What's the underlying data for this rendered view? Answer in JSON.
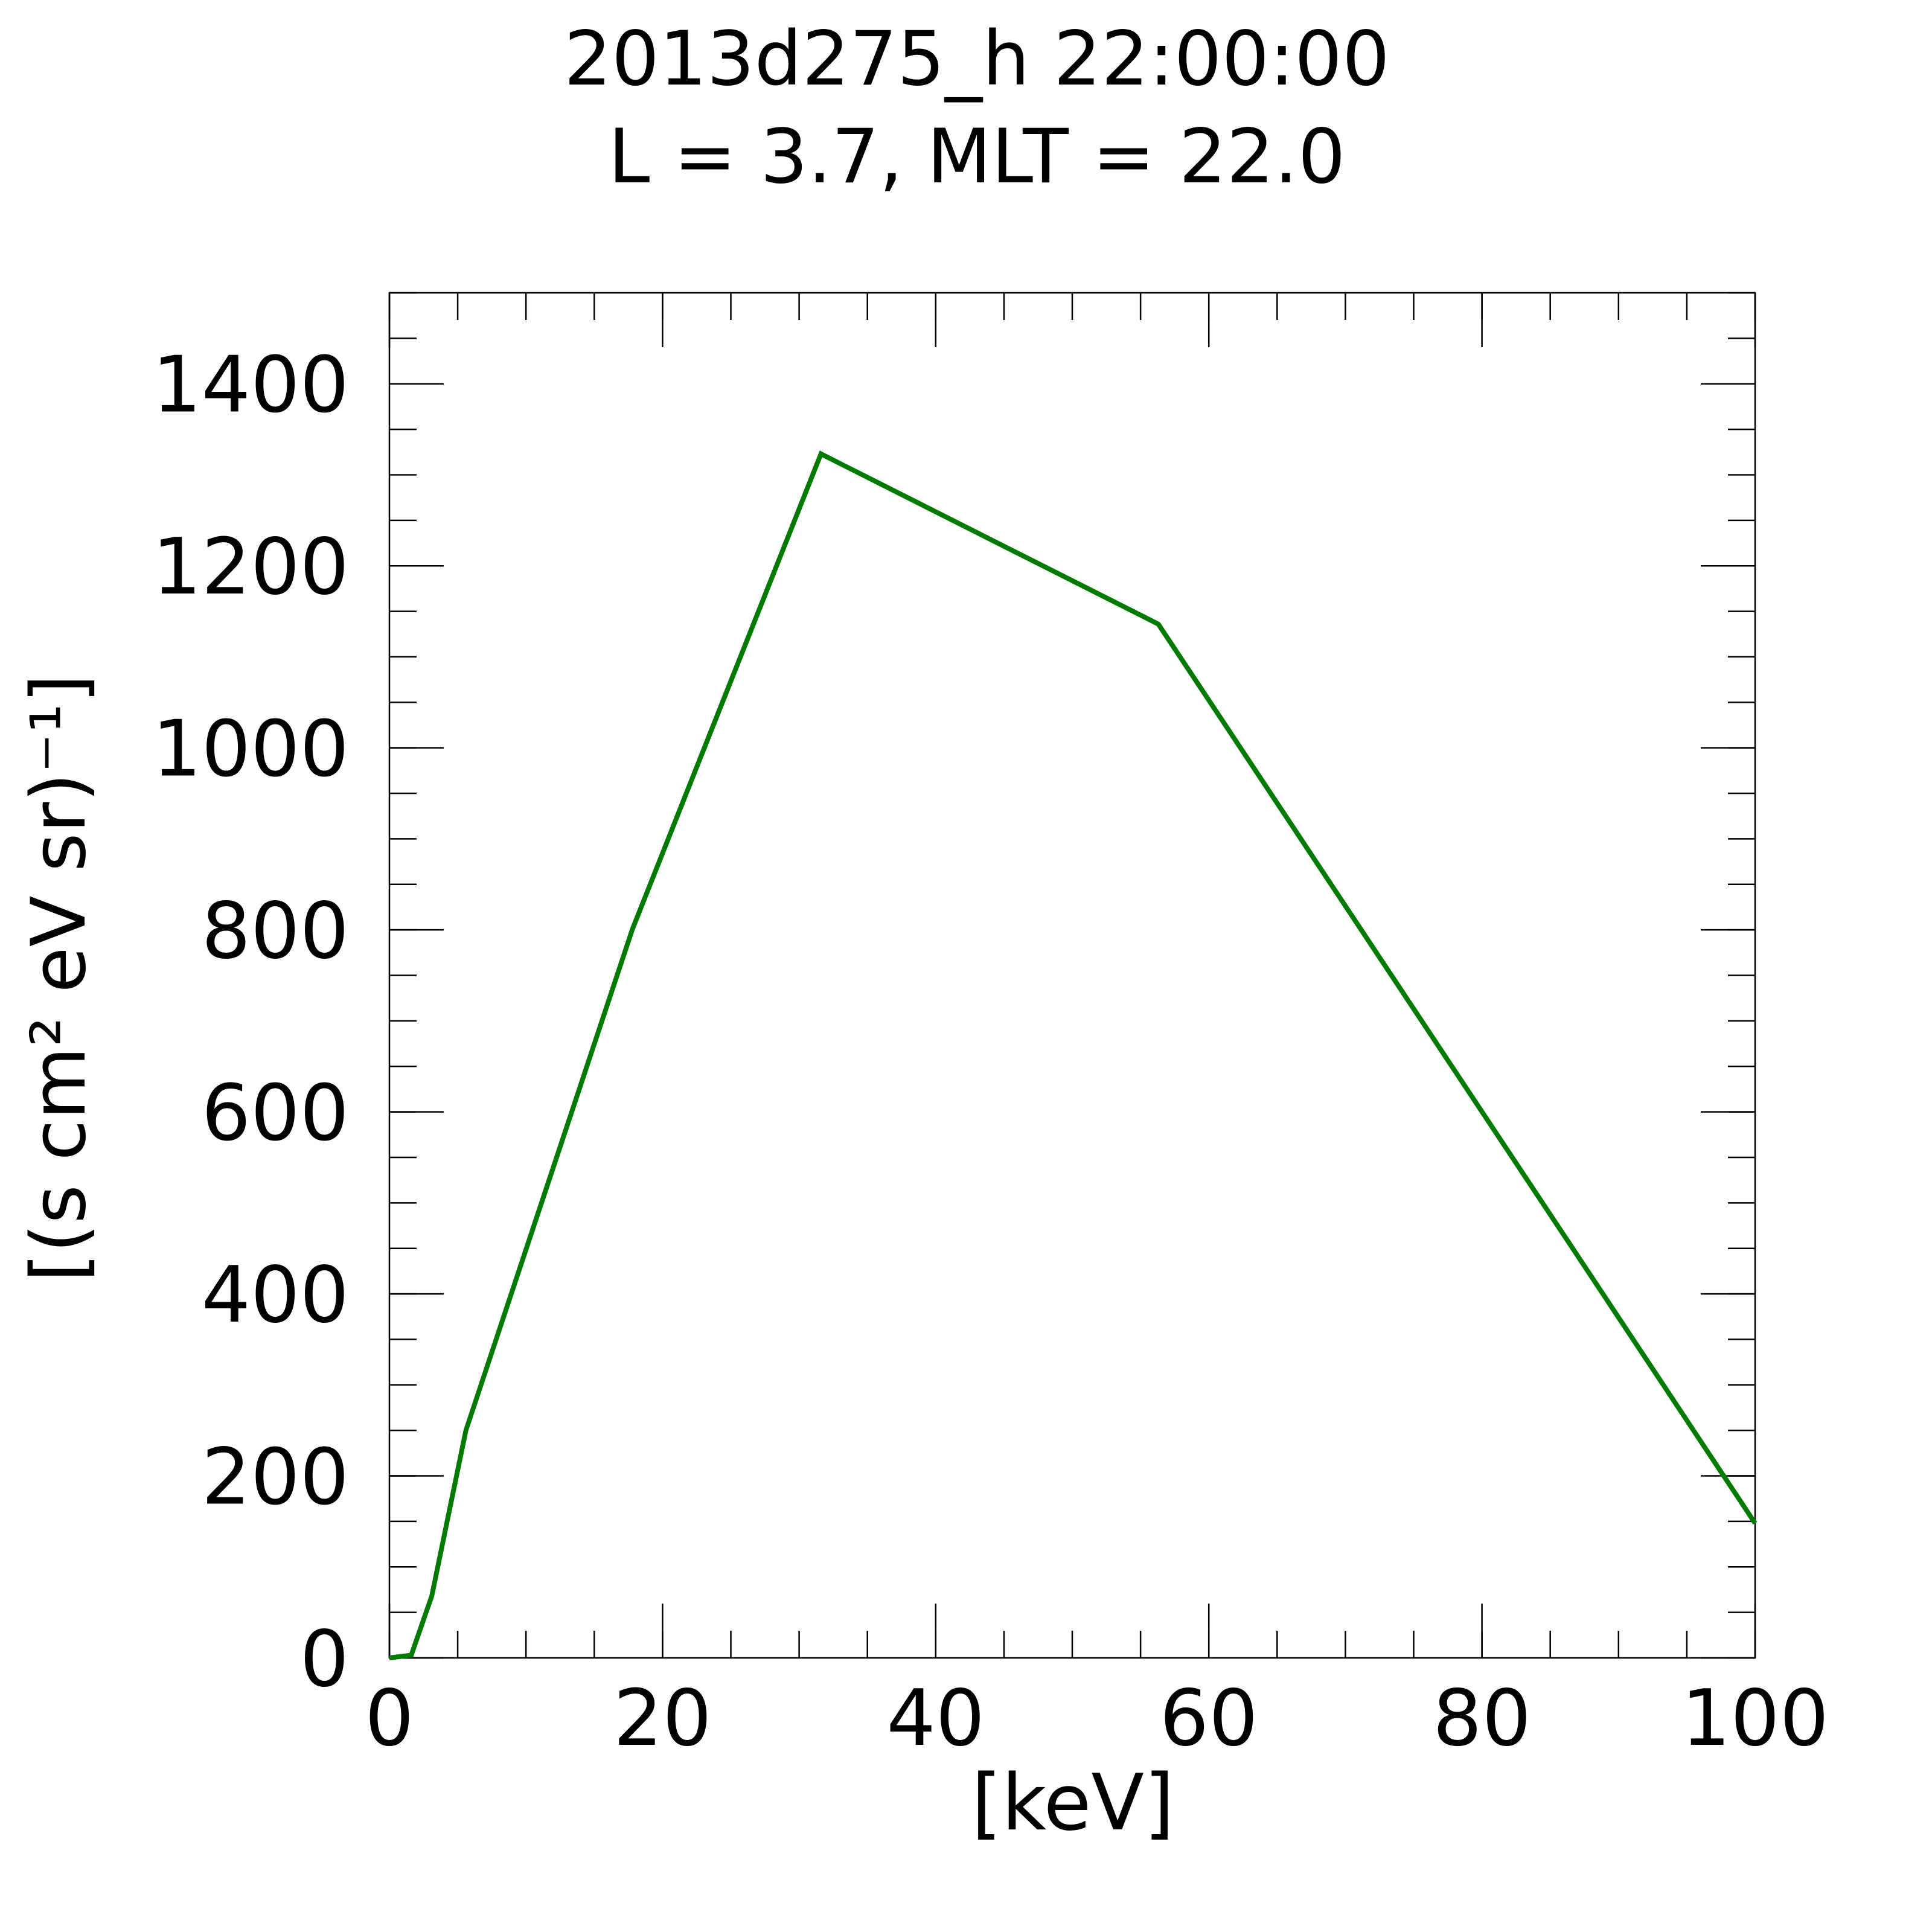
{
  "chart_data": {
    "type": "line",
    "title": "2013d275_h  22:00:00",
    "subtitle": "L = 3.7, MLT = 22.0",
    "xlabel": "[keV]",
    "ylabel": "[(s cm² eV sr)⁻¹]",
    "x": [
      0,
      1.6,
      3.1,
      5.6,
      17.8,
      31.6,
      56.3,
      100
    ],
    "series": [
      {
        "color": "#007a00",
        "values": [
          0,
          3,
          68,
          250,
          801,
          1323,
          1136,
          148
        ]
      }
    ],
    "xlim": [
      0,
      100
    ],
    "xticks": [
      0,
      20,
      40,
      60,
      80,
      100
    ],
    "x_minor_step": 5,
    "ylim": [
      0,
      1500
    ],
    "yticks": [
      0,
      200,
      400,
      600,
      800,
      1000,
      1200,
      1400
    ],
    "y_minor_step": 50,
    "grid": false
  }
}
